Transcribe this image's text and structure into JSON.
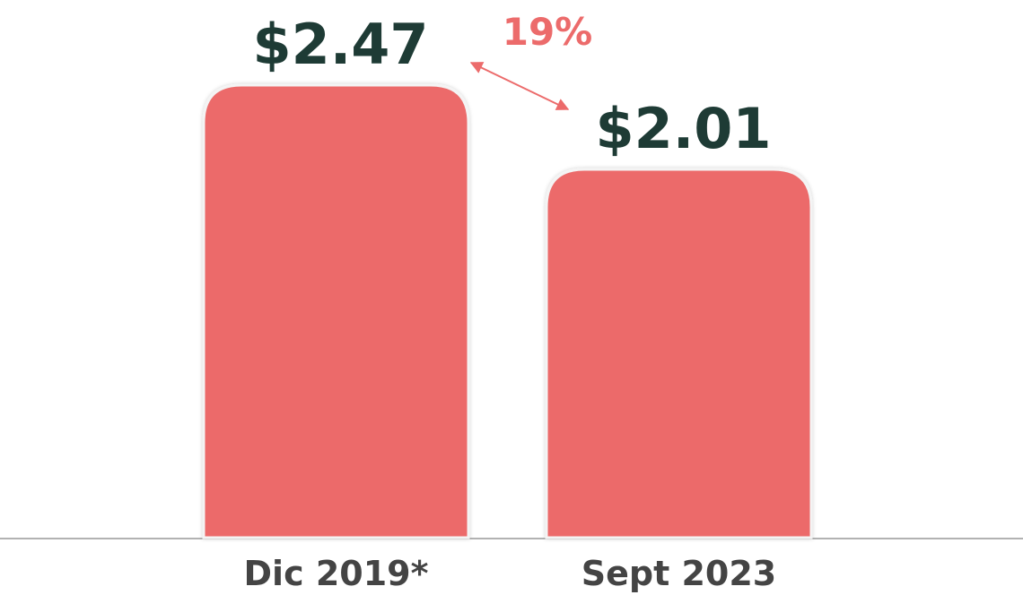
{
  "chart_data": {
    "type": "bar",
    "categories": [
      "Dic 2019*",
      "Sept 2023"
    ],
    "values": [
      2.47,
      2.01
    ],
    "value_labels": [
      "$2.47",
      "$2.01"
    ],
    "color": "#ec6b6b",
    "annotation": "19%"
  }
}
